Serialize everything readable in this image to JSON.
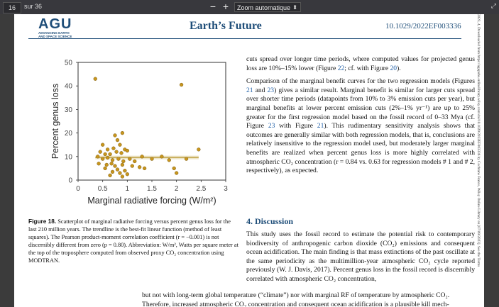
{
  "viewer": {
    "page_number": "16",
    "page_total": "sur 36",
    "zoom_out": "−",
    "zoom_in": "+",
    "zoom_label": "Zoom automatique",
    "zoom_caret": "⬍",
    "expand": "⤢"
  },
  "header": {
    "logo": "AGU",
    "logo_sub1": "ADVANCING EARTH",
    "logo_sub2": "AND SPACE SCIENCE",
    "journal": "Earth’s Future",
    "doi": "10.1029/2022EF003336"
  },
  "chart_data": {
    "type": "scatter",
    "xlabel": "Marginal radiative forcing (W/m²)",
    "ylabel": "Percent genus loss",
    "xlim": [
      0,
      3
    ],
    "ylim": [
      0,
      50
    ],
    "xticks": [
      "0",
      "0.5",
      "1",
      "1.5",
      "2",
      "2.5",
      "3"
    ],
    "yticks": [
      "0",
      "10",
      "20",
      "30",
      "40",
      "50"
    ],
    "points": [
      [
        0.35,
        43
      ],
      [
        2.1,
        40.5
      ],
      [
        0.75,
        19
      ],
      [
        0.9,
        20
      ],
      [
        0.8,
        17
      ],
      [
        0.85,
        15
      ],
      [
        0.5,
        15
      ],
      [
        0.6,
        13
      ],
      [
        0.72,
        13.5
      ],
      [
        0.95,
        13
      ],
      [
        0.45,
        12
      ],
      [
        0.55,
        11
      ],
      [
        0.65,
        11
      ],
      [
        0.78,
        12
      ],
      [
        0.88,
        11.5
      ],
      [
        1.0,
        12.5
      ],
      [
        1.3,
        10
      ],
      [
        1.7,
        10
      ],
      [
        2.45,
        13
      ],
      [
        0.4,
        10
      ],
      [
        0.5,
        9
      ],
      [
        0.6,
        9.5
      ],
      [
        0.7,
        8.5
      ],
      [
        0.82,
        9
      ],
      [
        0.92,
        8
      ],
      [
        1.05,
        9
      ],
      [
        1.15,
        8
      ],
      [
        1.5,
        9
      ],
      [
        1.85,
        8.5
      ],
      [
        2.2,
        9
      ],
      [
        0.42,
        7
      ],
      [
        0.58,
        6.5
      ],
      [
        0.68,
        7
      ],
      [
        0.75,
        6
      ],
      [
        0.9,
        6.5
      ],
      [
        1.1,
        6
      ],
      [
        1.25,
        5.5
      ],
      [
        0.55,
        5
      ],
      [
        0.8,
        4.5
      ],
      [
        0.95,
        4
      ],
      [
        1.35,
        5
      ],
      [
        1.95,
        5
      ],
      [
        0.7,
        3.5
      ],
      [
        0.85,
        3
      ],
      [
        1.0,
        2.5
      ],
      [
        2.0,
        3
      ],
      [
        0.65,
        2
      ],
      [
        0.9,
        1.5
      ]
    ],
    "trendline": {
      "x": [
        0.35,
        2.45
      ],
      "y": [
        9.6,
        9.6
      ]
    }
  },
  "caption": {
    "label": "Figure 18.",
    "text": "Scatterplot of marginal radiative forcing versus percent genus loss for the last 210 million years. The trendline is the best-fit linear function (method of least squares). The Pearson product-moment correlation coefficient (r = −0.001) is not discernibly different from zero (p = 0.80). Abbreviation: W/m², Watts per square meter at the top of the troposphere computed from observed proxy CO₂ concentration using MODTRAN."
  },
  "body": {
    "p1_a": "cuts spread over longer time periods, where computed values for projected genus loss are 10%–15% lower (Figure ",
    "p1_ref1": "22",
    "p1_b": "; cf. with Figure ",
    "p1_ref2": "20",
    "p1_c": ").",
    "p2_a": "Comparison of the marginal benefit curves for the two regression models (Figures ",
    "p2_ref1": "21",
    "p2_b": " and ",
    "p2_ref2": "23",
    "p2_c": ") gives a similar result. Marginal benefit is similar for larger cuts spread over shorter time periods (datapoints from 10% to 3% emission cuts per year), but marginal benefits at lower percent emission cuts (2%–1% yr⁻¹) are up to 25% greater for the first regression model based on the fossil record of 0–33 Mya (cf. Figure ",
    "p2_ref3": "23",
    "p2_d": " with Figure ",
    "p2_ref4": "21",
    "p2_e": "). This rudimentary sensitivity analysis shows that outcomes are generally similar with both regression models, that is, conclusions are relatively insensitive to the regression model used, but moderately larger marginal benefits are realized when percent genus loss is more highly correlated with atmospheric CO₂ concentration (r = 0.84 vs. 0.63 for regression models # 1 and # 2, respectively), as expected.",
    "section": "4. Discussion",
    "d1_a": "This study uses the fossil record to estimate the potential risk to contemporary biodiversity of anthropogenic carbon dioxide (CO₂) emissions and consequent ocean acidification. The main finding is that mass extinctions of the past oscillate at the same periodicity as the multimillion-year atmospheric CO₂ cycle reported previously (W. J. Davis, ",
    "d1_ref": "2017",
    "d1_b": "). Percent genus loss in the fossil record is discernibly correlated with atmospheric CO₂ concentration,",
    "d2": "but not with long-term global temperature (“climate”) nor with marginal RF of temperature by atmospheric CO₂.",
    "d3": "Therefore, increased atmospheric CO₂ concentration and consequent ocean acidification is a plausible kill mech-"
  },
  "sidebar_text": "2023, 4, Downloaded from https://agupubs.onlinelibrary.wiley.com/doi/10.1029/2022EF003336 by Cochrane France, Wiley Online Library on [07/09/2023]. See the Terms"
}
